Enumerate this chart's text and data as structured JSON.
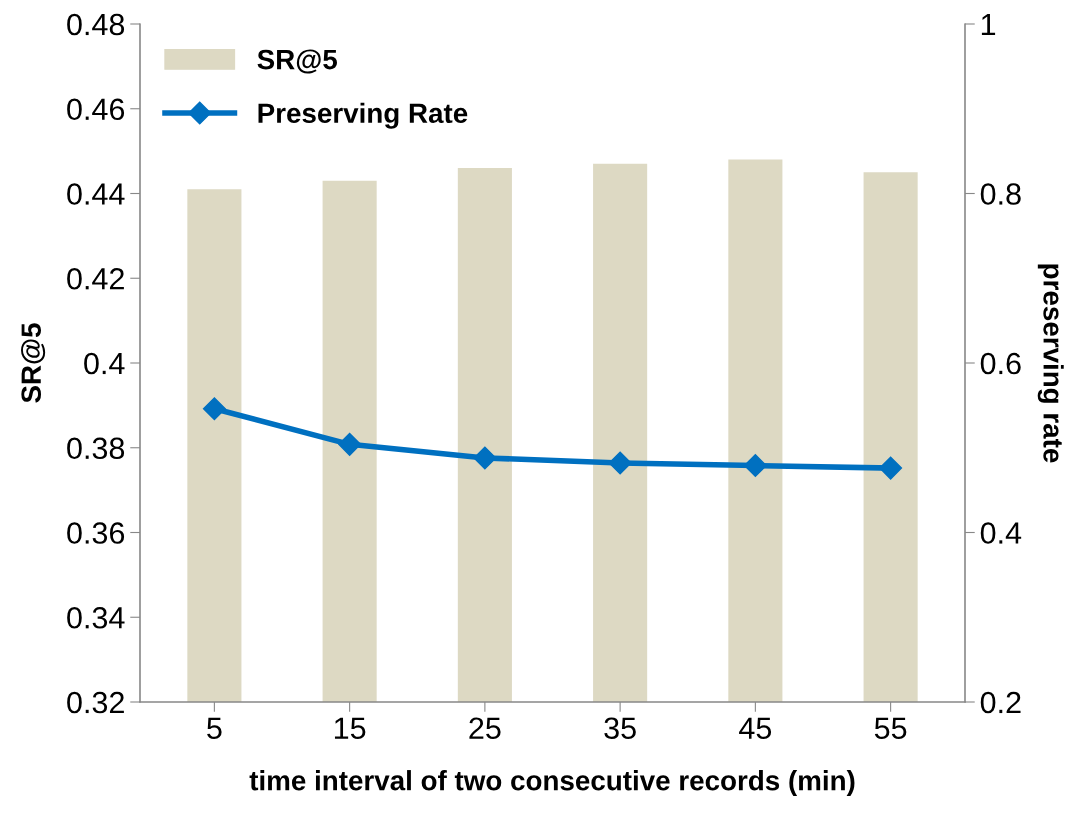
{
  "chart_data": {
    "type": "bar",
    "xlabel": "time interval of two consecutive records (min)",
    "ylabel": "SR@5",
    "y2label": "preserving rate",
    "categories": [
      "5",
      "15",
      "25",
      "35",
      "45",
      "55"
    ],
    "series": [
      {
        "name": "SR@5",
        "color": "#ddd9c3",
        "values": [
          0.441,
          0.443,
          0.446,
          0.447,
          0.448,
          0.445
        ]
      },
      {
        "name": "Preserving Rate",
        "type": "line",
        "axis": "y2",
        "color": "#0070c0",
        "marker": "diamond",
        "values": [
          0.546,
          0.504,
          0.488,
          0.482,
          0.479,
          0.476
        ]
      }
    ],
    "ylim": [
      0.32,
      0.48
    ],
    "yticks": [
      0.32,
      0.34,
      0.36,
      0.38,
      0.4,
      0.42,
      0.44,
      0.46,
      0.48
    ],
    "y2lim": [
      0.2,
      1
    ],
    "y2ticks": [
      0.2,
      0.4,
      0.6,
      0.8,
      1
    ],
    "grid": false,
    "legend": "top left"
  }
}
